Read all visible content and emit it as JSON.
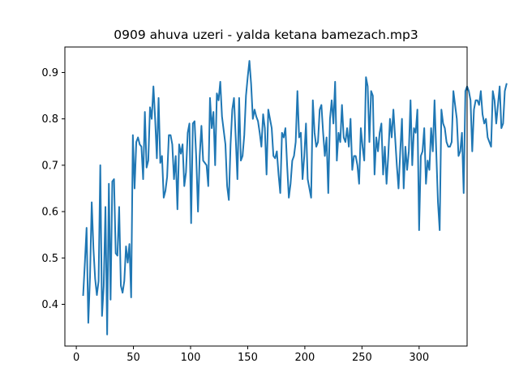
{
  "chart_data": {
    "type": "line",
    "title": "0909 ahuva uzeri - yalda ketana bamezach.mp3",
    "xlabel": "",
    "ylabel": "",
    "xlim": [
      -10,
      342
    ],
    "ylim": [
      0.31,
      0.955
    ],
    "x_ticks": [
      0,
      50,
      100,
      150,
      200,
      250,
      300
    ],
    "y_ticks": [
      0.4,
      0.5,
      0.6,
      0.7,
      0.8,
      0.9
    ],
    "x_tick_labels": [
      "0",
      "50",
      "100",
      "150",
      "200",
      "250",
      "300"
    ],
    "y_tick_labels": [
      "0.4",
      "0.5",
      "0.6",
      "0.7",
      "0.8",
      "0.9"
    ],
    "grid": false,
    "line_color": "#1f77b4",
    "series": [
      {
        "x_start": 6,
        "x_step": 1.5,
        "values": [
          0.42,
          0.49,
          0.565,
          0.36,
          0.46,
          0.62,
          0.52,
          0.455,
          0.42,
          0.45,
          0.7,
          0.375,
          0.44,
          0.61,
          0.335,
          0.66,
          0.41,
          0.665,
          0.67,
          0.51,
          0.505,
          0.61,
          0.44,
          0.425,
          0.45,
          0.525,
          0.49,
          0.53,
          0.415,
          0.765,
          0.65,
          0.75,
          0.76,
          0.745,
          0.74,
          0.67,
          0.815,
          0.695,
          0.71,
          0.825,
          0.8,
          0.87,
          0.8,
          0.715,
          0.845,
          0.705,
          0.72,
          0.63,
          0.645,
          0.675,
          0.765,
          0.765,
          0.745,
          0.67,
          0.72,
          0.605,
          0.745,
          0.725,
          0.745,
          0.655,
          0.685,
          0.77,
          0.79,
          0.575,
          0.79,
          0.795,
          0.715,
          0.6,
          0.72,
          0.785,
          0.71,
          0.705,
          0.7,
          0.655,
          0.845,
          0.78,
          0.815,
          0.7,
          0.855,
          0.84,
          0.88,
          0.805,
          0.775,
          0.745,
          0.655,
          0.625,
          0.745,
          0.82,
          0.845,
          0.76,
          0.67,
          0.845,
          0.71,
          0.72,
          0.765,
          0.85,
          0.89,
          0.925,
          0.875,
          0.8,
          0.82,
          0.805,
          0.795,
          0.77,
          0.74,
          0.81,
          0.78,
          0.68,
          0.82,
          0.8,
          0.78,
          0.72,
          0.715,
          0.73,
          0.68,
          0.64,
          0.77,
          0.76,
          0.78,
          0.7,
          0.63,
          0.66,
          0.71,
          0.72,
          0.75,
          0.86,
          0.76,
          0.77,
          0.67,
          0.72,
          0.79,
          0.67,
          0.65,
          0.63,
          0.84,
          0.77,
          0.74,
          0.75,
          0.82,
          0.83,
          0.77,
          0.72,
          0.76,
          0.64,
          0.8,
          0.84,
          0.79,
          0.88,
          0.71,
          0.77,
          0.75,
          0.83,
          0.76,
          0.75,
          0.78,
          0.74,
          0.8,
          0.69,
          0.72,
          0.72,
          0.7,
          0.66,
          0.78,
          0.74,
          0.71,
          0.89,
          0.87,
          0.75,
          0.86,
          0.85,
          0.68,
          0.76,
          0.73,
          0.77,
          0.79,
          0.68,
          0.74,
          0.66,
          0.72,
          0.8,
          0.76,
          0.82,
          0.76,
          0.7,
          0.65,
          0.73,
          0.8,
          0.65,
          0.74,
          0.69,
          0.73,
          0.84,
          0.7,
          0.78,
          0.77,
          0.82,
          0.56,
          0.72,
          0.73,
          0.78,
          0.66,
          0.71,
          0.69,
          0.78,
          0.73,
          0.84,
          0.73,
          0.62,
          0.56,
          0.82,
          0.79,
          0.78,
          0.75,
          0.74,
          0.74,
          0.75,
          0.86,
          0.83,
          0.8,
          0.72,
          0.73,
          0.77,
          0.64,
          0.86,
          0.87,
          0.86,
          0.84,
          0.73,
          0.82,
          0.84,
          0.84,
          0.83,
          0.86,
          0.81,
          0.79,
          0.8,
          0.76,
          0.75,
          0.74,
          0.86,
          0.84,
          0.79,
          0.83,
          0.87,
          0.78,
          0.79,
          0.86,
          0.875
        ]
      }
    ]
  }
}
